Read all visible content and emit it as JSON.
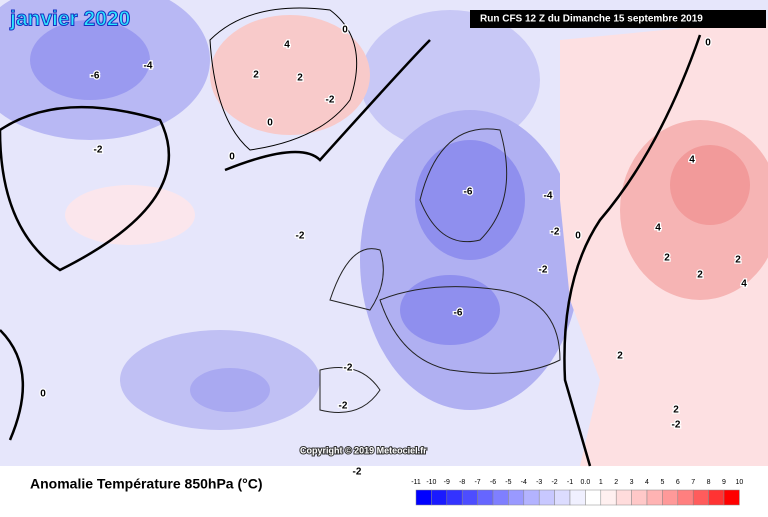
{
  "header": {
    "title": "janvier 2020",
    "run": "Run CFS 12 Z du Dimanche 15 septembre 2019"
  },
  "map": {
    "copyright": "Copyright © 2019 Meteociel.fr",
    "contour_labels": [
      "-6",
      "-4",
      "-2",
      "0",
      "4",
      "2",
      "2",
      "0",
      "-2",
      "0",
      "-2",
      "-6",
      "-4",
      "-2",
      "0",
      "-2",
      "-6",
      "-2",
      "-2",
      "-2",
      "0",
      "-2",
      "4",
      "4",
      "2",
      "2",
      "4",
      "2",
      "2",
      "2",
      "0"
    ]
  },
  "legend": {
    "title": "Anomalie Température 850hPa (°C)",
    "labels": [
      "-11",
      "-10",
      "-9",
      "-8",
      "-7",
      "-6",
      "-5",
      "-4",
      "-3",
      "-2",
      "-1",
      "0.0",
      "1",
      "2",
      "3",
      "4",
      "5",
      "6",
      "7",
      "8",
      "9",
      "10"
    ],
    "colors": [
      "#0000ff",
      "#1a1aff",
      "#3333ff",
      "#4d4dff",
      "#6666ff",
      "#7f7fff",
      "#9999ff",
      "#b3b3ff",
      "#c8c8ff",
      "#dcdcff",
      "#f0f0ff",
      "#ffffff",
      "#fff0f0",
      "#ffdcdc",
      "#ffc8c8",
      "#ffb3b3",
      "#ff9999",
      "#ff7f7f",
      "#ff5c5c",
      "#ff3333",
      "#ff0000"
    ]
  }
}
